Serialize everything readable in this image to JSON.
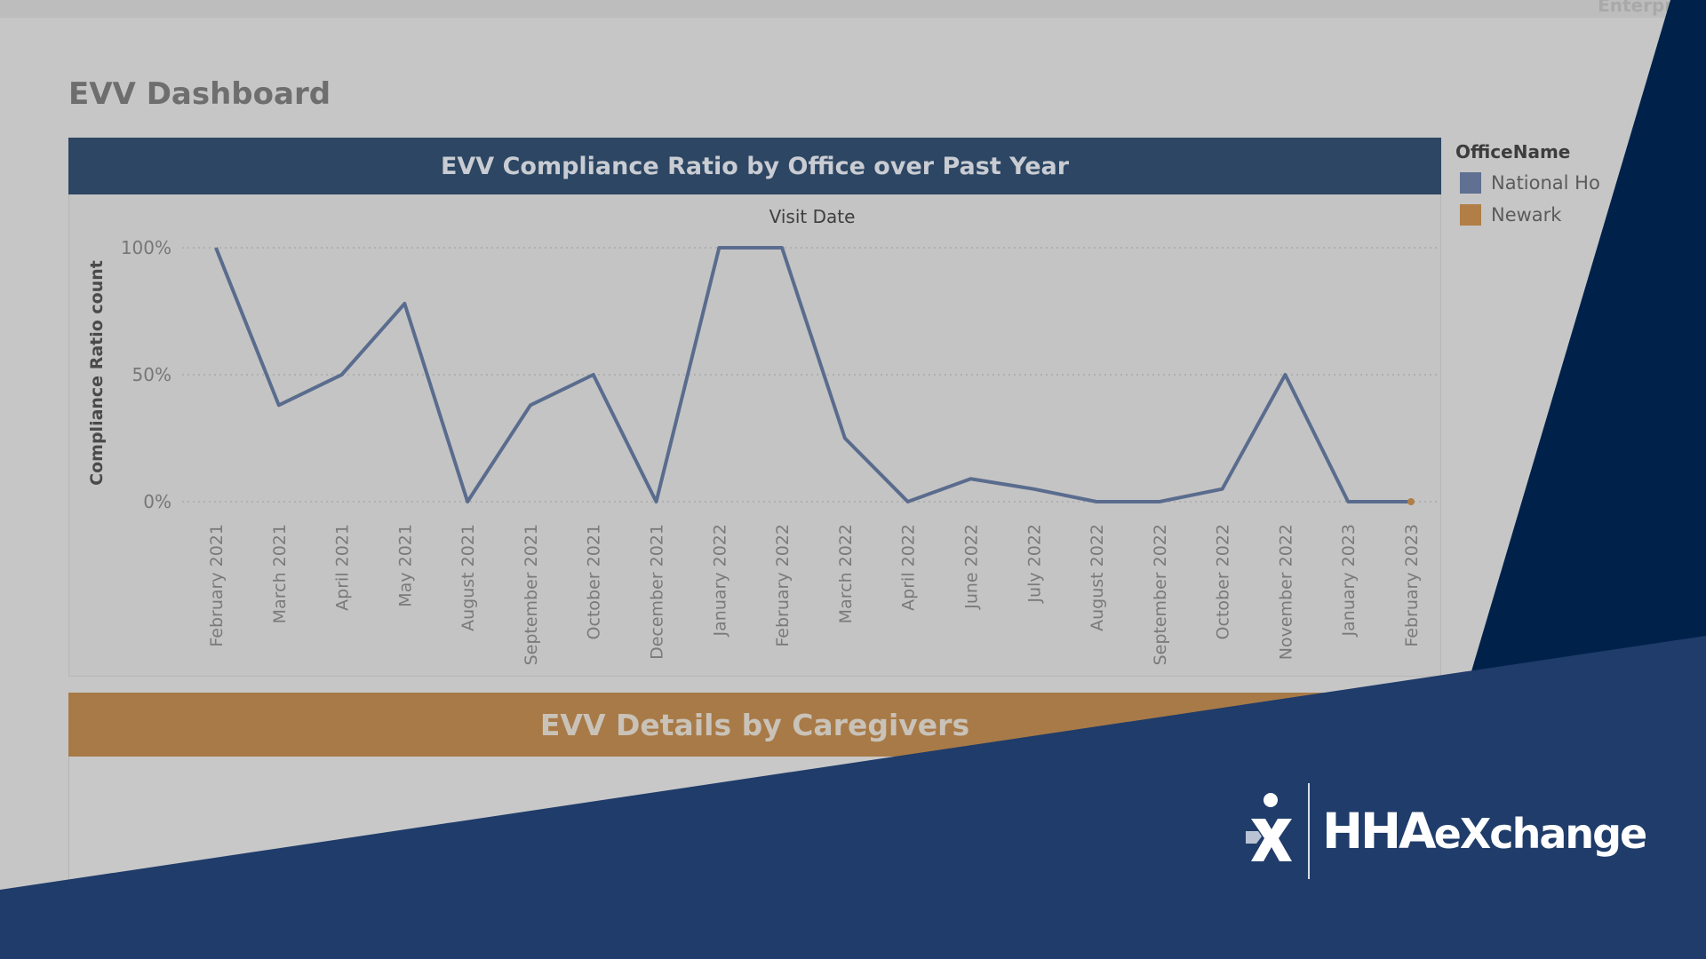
{
  "topbar": {
    "right_text": "Enterpri"
  },
  "page": {
    "title": "EVV Dashboard"
  },
  "chart_panel": {
    "header": "EVV Compliance Ratio by Office over Past Year"
  },
  "details_panel": {
    "header": "EVV Details by Caregivers"
  },
  "legend": {
    "title": "OfficeName",
    "items": [
      {
        "label": "National Ho",
        "color": "#5f7092"
      },
      {
        "label": "Newark",
        "color": "#b07e46"
      }
    ]
  },
  "brand": {
    "name": "HHAeXchange",
    "logo_text_part1": "HHA",
    "logo_text_part2": "eXchange"
  },
  "colors": {
    "navy_dark": "#00224a",
    "navy": "#1f3c6a",
    "chart_header": "#2c4663",
    "details_header": "#a87a47",
    "line": "#5a6c8e"
  },
  "chart_data": {
    "type": "line",
    "xlabel": "Visit Date",
    "ylabel": "Compliance Ratio count",
    "ylim": [
      0,
      1
    ],
    "y_ticks": [
      {
        "value": 1,
        "label": "100%"
      },
      {
        "value": 0.5,
        "label": "50%"
      },
      {
        "value": 0,
        "label": "0%"
      }
    ],
    "categories": [
      "February 2021",
      "March 2021",
      "April 2021",
      "May 2021",
      "August 2021",
      "September 2021",
      "October 2021",
      "December 2021",
      "January 2022",
      "February 2022",
      "March 2022",
      "April 2022",
      "June 2022",
      "July 2022",
      "August 2022",
      "September 2022",
      "October 2022",
      "November 2022",
      "January 2023",
      "February 2023"
    ],
    "series": [
      {
        "name": "National Ho",
        "color": "#5a6c8e",
        "values": [
          1.0,
          0.38,
          0.5,
          0.78,
          0.0,
          0.38,
          0.5,
          0.0,
          1.0,
          1.0,
          0.25,
          0.0,
          0.09,
          0.05,
          0.0,
          0.0,
          0.05,
          0.5,
          0.0,
          0.0
        ]
      },
      {
        "name": "Newark",
        "color": "#b07e46",
        "values": [
          null,
          null,
          null,
          null,
          null,
          null,
          null,
          null,
          null,
          null,
          null,
          null,
          null,
          null,
          null,
          null,
          null,
          null,
          null,
          0.0
        ]
      }
    ],
    "grid": "dotted horizontal",
    "legend_position": "right"
  }
}
